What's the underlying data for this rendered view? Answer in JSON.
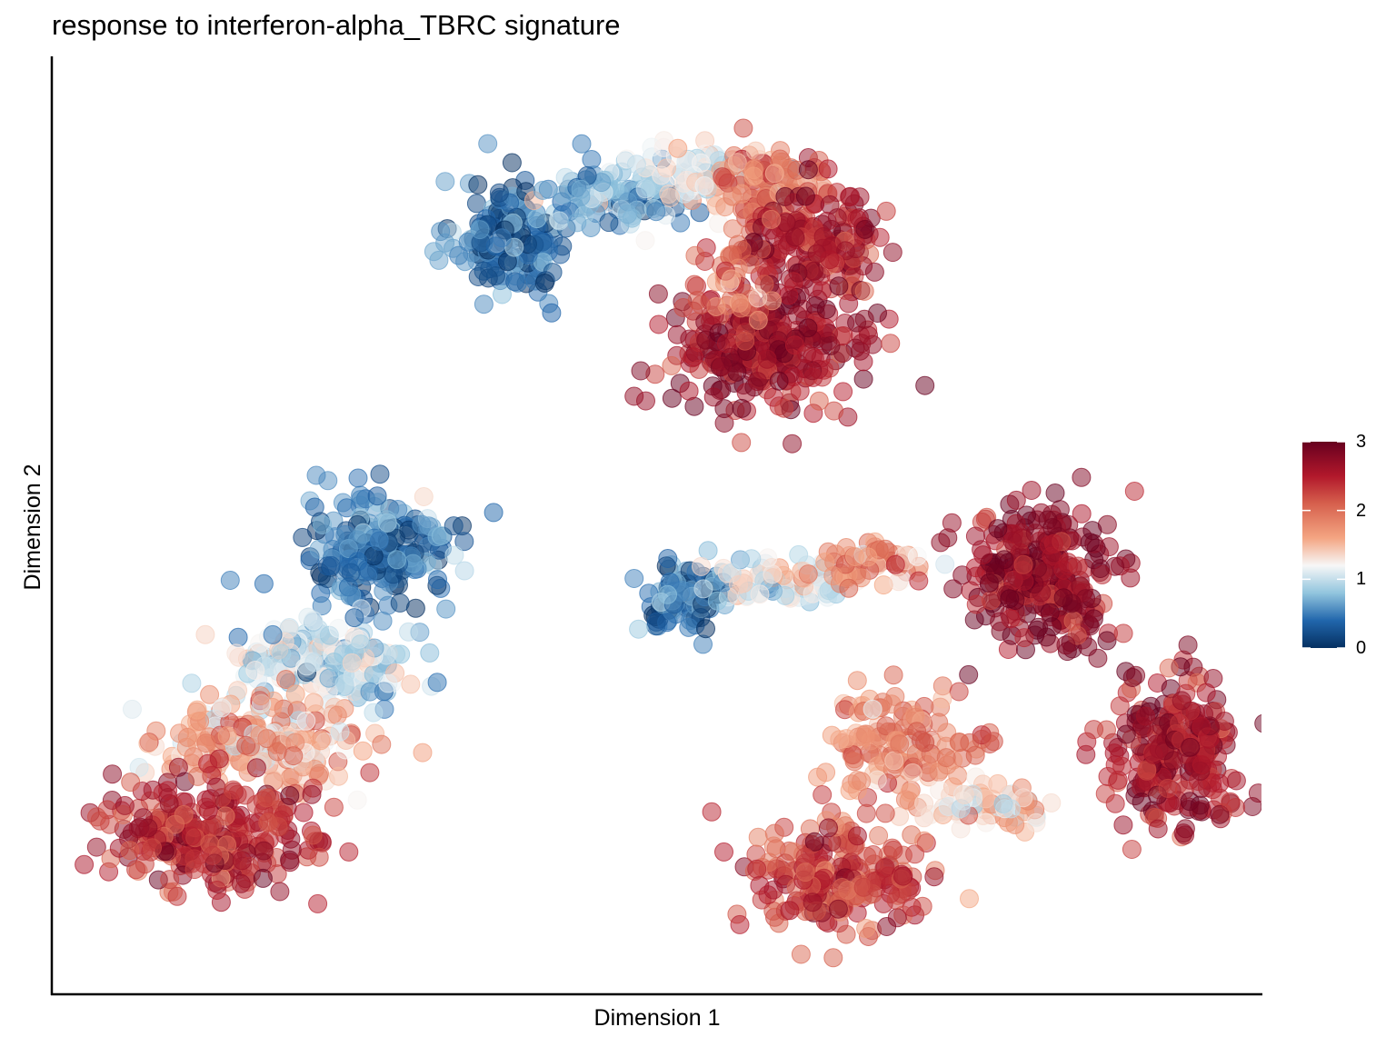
{
  "chart_data": {
    "type": "scatter",
    "title": "response to interferon-alpha_TBRC signature",
    "xlabel": "Dimension 1",
    "ylabel": "Dimension 2",
    "xlim": [
      0,
      100
    ],
    "ylim": [
      0,
      100
    ],
    "show_axis_ticks": false,
    "grid": false,
    "colorbar": {
      "placement": "right",
      "range": [
        0,
        3
      ],
      "tick_labels": [
        "0",
        "1",
        "2",
        "3"
      ],
      "tick_values": [
        0,
        1,
        2,
        3
      ],
      "color_stops": [
        {
          "value": 0.0,
          "color": "#053061"
        },
        {
          "value": 0.4,
          "color": "#2166ac"
        },
        {
          "value": 0.8,
          "color": "#92c5de"
        },
        {
          "value": 1.2,
          "color": "#f7f7f7"
        },
        {
          "value": 1.6,
          "color": "#f4a582"
        },
        {
          "value": 2.1,
          "color": "#d6604d"
        },
        {
          "value": 2.5,
          "color": "#b2182b"
        },
        {
          "value": 3.0,
          "color": "#67001f"
        }
      ]
    },
    "point_opacity": 0.5,
    "clusters": [
      {
        "id": "top-cluster-left-arm",
        "cx": 38,
        "cy": 83,
        "sx": 2.3,
        "sy": 3.3,
        "count": 170,
        "score": 0.35
      },
      {
        "id": "top-cluster-arm-blue",
        "cx": 47,
        "cy": 88,
        "sx": 3.0,
        "sy": 2.0,
        "count": 110,
        "score": 0.75
      },
      {
        "id": "top-cluster-arm-white",
        "cx": 54,
        "cy": 90,
        "sx": 2.4,
        "sy": 1.8,
        "count": 80,
        "score": 1.25
      },
      {
        "id": "top-cluster-arm-red",
        "cx": 60,
        "cy": 89,
        "sx": 2.3,
        "sy": 2.2,
        "count": 100,
        "score": 1.9
      },
      {
        "id": "top-cluster-right-upper",
        "cx": 63,
        "cy": 83,
        "sx": 2.7,
        "sy": 3.0,
        "count": 170,
        "score": 2.55
      },
      {
        "id": "top-cluster-bottom",
        "cx": 59,
        "cy": 71,
        "sx": 4.0,
        "sy": 3.5,
        "count": 300,
        "score": 2.7
      },
      {
        "id": "top-cluster-drip",
        "cx": 56,
        "cy": 78,
        "sx": 1.8,
        "sy": 2.5,
        "count": 40,
        "score": 2.0
      },
      {
        "id": "left-cluster-head",
        "cx": 27,
        "cy": 48,
        "sx": 3.0,
        "sy": 3.3,
        "count": 240,
        "score": 0.45
      },
      {
        "id": "left-cluster-neck",
        "cx": 22,
        "cy": 36,
        "sx": 3.5,
        "sy": 2.3,
        "count": 200,
        "score": 1.0
      },
      {
        "id": "left-cluster-body",
        "cx": 17,
        "cy": 27,
        "sx": 4.3,
        "sy": 2.5,
        "count": 220,
        "score": 1.6
      },
      {
        "id": "left-cluster-lower",
        "cx": 13,
        "cy": 17,
        "sx": 4.5,
        "sy": 3.0,
        "count": 280,
        "score": 2.45
      },
      {
        "id": "middle-arm-blue",
        "cx": 52,
        "cy": 43,
        "sx": 1.8,
        "sy": 1.8,
        "count": 100,
        "score": 0.35
      },
      {
        "id": "middle-arm-light",
        "cx": 60,
        "cy": 45,
        "sx": 3.0,
        "sy": 1.3,
        "count": 80,
        "score": 1.15
      },
      {
        "id": "middle-arm-orange",
        "cx": 68,
        "cy": 47,
        "sx": 2.5,
        "sy": 1.0,
        "count": 60,
        "score": 1.8
      },
      {
        "id": "right-cluster-upper",
        "cx": 82,
        "cy": 46,
        "sx": 3.0,
        "sy": 4.0,
        "count": 280,
        "score": 2.75
      },
      {
        "id": "right-cluster-lower",
        "cx": 93,
        "cy": 26,
        "sx": 2.7,
        "sy": 4.0,
        "count": 250,
        "score": 2.65
      },
      {
        "id": "bottom-cluster-upper",
        "cx": 70,
        "cy": 27,
        "sx": 3.0,
        "sy": 3.0,
        "count": 150,
        "score": 1.85
      },
      {
        "id": "bottom-cluster-lower",
        "cx": 65,
        "cy": 12,
        "sx": 3.5,
        "sy": 3.0,
        "count": 220,
        "score": 2.3
      },
      {
        "id": "bottom-cluster-bridge",
        "cx": 77,
        "cy": 20,
        "sx": 3.0,
        "sy": 1.0,
        "count": 70,
        "score": 1.35
      }
    ]
  }
}
